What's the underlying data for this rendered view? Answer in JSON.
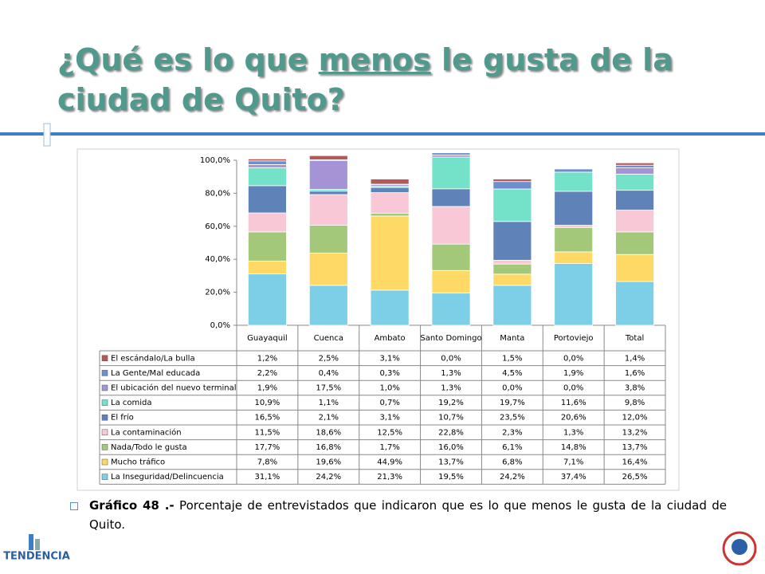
{
  "slide": {
    "title": {
      "before": "¿Qué es lo que ",
      "emphasis": "menos",
      "after": " le gusta de la ciudad de Quito?"
    },
    "caption": {
      "label": "Gráfico 48 .-",
      "text": " Porcentaje de entrevistados que indicaron que es lo que menos le gusta de la ciudad de Quito."
    },
    "logo": "TENDENCIA"
  },
  "chart_data": {
    "type": "stacked_bar",
    "categories": [
      "Guayaquil",
      "Cuenca",
      "Ambato",
      "Santo Domingo",
      "Manta",
      "Portoviejo",
      "Total"
    ],
    "ylim": [
      0,
      100
    ],
    "yticks": [
      {
        "value": 0,
        "label": "0,0%"
      },
      {
        "value": 20,
        "label": "20,0%"
      },
      {
        "value": 40,
        "label": "40,0%"
      },
      {
        "value": 60,
        "label": "60,0%"
      },
      {
        "value": 80,
        "label": "80,0%"
      },
      {
        "value": 100,
        "label": "100,0%"
      }
    ],
    "series": [
      {
        "name": "La Inseguridad/Delincuencia",
        "color": "#7ccfe6",
        "values": [
          31.1,
          24.2,
          21.3,
          19.5,
          24.2,
          37.4,
          26.5
        ],
        "value_labels": [
          "31,1%",
          "24,2%",
          "21,3%",
          "19,5%",
          "24,2%",
          "37,4%",
          "26,5%"
        ]
      },
      {
        "name": "Mucho tráfico",
        "color": "#ffd966",
        "values": [
          7.8,
          19.6,
          44.9,
          13.7,
          6.8,
          7.1,
          16.4
        ],
        "value_labels": [
          "7,8%",
          "19,6%",
          "44,9%",
          "13,7%",
          "6,8%",
          "7,1%",
          "16,4%"
        ]
      },
      {
        "name": "Nada/Todo le gusta",
        "color": "#a4c87a",
        "values": [
          17.7,
          16.8,
          1.7,
          16.0,
          6.1,
          14.8,
          13.7
        ],
        "value_labels": [
          "17,7%",
          "16,8%",
          "1,7%",
          "16,0%",
          "6,1%",
          "14,8%",
          "13,7%"
        ]
      },
      {
        "name": "La contaminación",
        "color": "#f8c8d6",
        "values": [
          11.5,
          18.6,
          12.5,
          22.8,
          2.3,
          1.3,
          13.2
        ],
        "value_labels": [
          "11,5%",
          "18,6%",
          "12,5%",
          "22,8%",
          "2,3%",
          "1,3%",
          "13,2%"
        ]
      },
      {
        "name": "El frío",
        "color": "#5f82b8",
        "values": [
          16.5,
          2.1,
          3.1,
          10.7,
          23.5,
          20.6,
          12.0
        ],
        "value_labels": [
          "16,5%",
          "2,1%",
          "3,1%",
          "10,7%",
          "23,5%",
          "20,6%",
          "12,0%"
        ]
      },
      {
        "name": "La comida",
        "color": "#74e2c8",
        "values": [
          10.9,
          1.1,
          0.7,
          19.2,
          19.7,
          11.6,
          9.8
        ],
        "value_labels": [
          "10,9%",
          "1,1%",
          "0,7%",
          "19,2%",
          "19,7%",
          "11,6%",
          "9,8%"
        ]
      },
      {
        "name": "El ubicación del nuevo terminal",
        "color": "#a494d6",
        "values": [
          1.9,
          17.5,
          1.0,
          1.3,
          0.0,
          0.0,
          3.8
        ],
        "value_labels": [
          "1,9%",
          "17,5%",
          "1,0%",
          "1,3%",
          "0,0%",
          "0,0%",
          "3,8%"
        ]
      },
      {
        "name": "La Gente/Mal educada",
        "color": "#6e8fcc",
        "values": [
          2.2,
          0.4,
          0.3,
          1.3,
          4.5,
          1.9,
          1.6
        ],
        "value_labels": [
          "2,2%",
          "0,4%",
          "0,3%",
          "1,3%",
          "4,5%",
          "1,9%",
          "1,6%"
        ]
      },
      {
        "name": "El escándalo/La bulla",
        "color": "#b45858",
        "values": [
          1.2,
          2.5,
          3.1,
          0.0,
          1.5,
          0.0,
          1.4
        ],
        "value_labels": [
          "1,2%",
          "2,5%",
          "3,1%",
          "0,0%",
          "1,5%",
          "0,0%",
          "1,4%"
        ]
      }
    ]
  }
}
